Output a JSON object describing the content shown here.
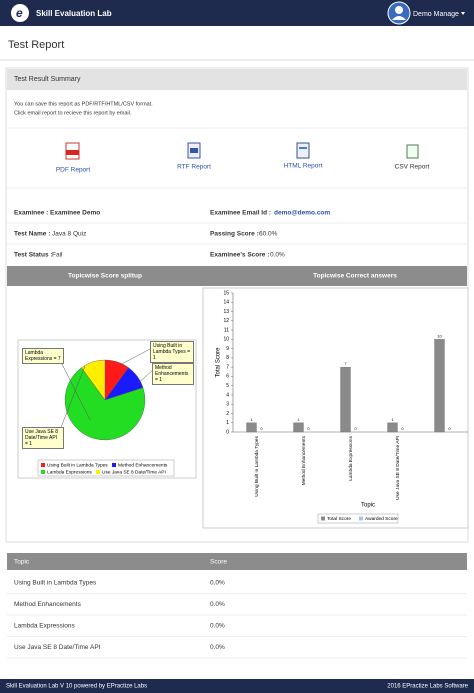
{
  "header": {
    "app_name": "Skill Evaluation Lab",
    "user": "Demo Manage"
  },
  "page_title": "Test Report",
  "summary": {
    "title": "Test Result Summary",
    "notes": [
      "You can save this report as PDF/RTF/HTML/CSV format.",
      "Click email report to recieve this report by email."
    ],
    "reports": [
      "PDF Report",
      "RTF Report",
      "HTML Report",
      "CSV Report"
    ],
    "info": [
      {
        "label": "Examinee :",
        "value": "Examinee Demo"
      },
      {
        "label": "Examinee Email Id :",
        "value": "demo@demo.com"
      },
      {
        "label": "Test Name :",
        "value": "Java 8 Quiz"
      },
      {
        "label": "Passing Score :",
        "value": "60.0%"
      },
      {
        "label": "Test Status :",
        "value": "Fail"
      },
      {
        "label": "Examinee's Score :",
        "value": "0.0%"
      }
    ]
  },
  "chart_data": [
    {
      "type": "pie",
      "title": "Topicwise Score splitup",
      "categories": [
        "Using Built in Lambda Types",
        "Method Enhancements",
        "Lambda Expressions",
        "Use Java SE 8 Date/Time API"
      ],
      "values": [
        1,
        1,
        7,
        1
      ],
      "value_labels": [
        "Using Built in Lambda Types = 1",
        "Method Enhancements = 1",
        "Lambda Expressions = 7",
        "Use Java SE 8 Date/Time API = 1"
      ],
      "colors": [
        "#ff1a1a",
        "#1a1aff",
        "#22dd22",
        "#ffee00"
      ]
    },
    {
      "type": "bar",
      "title": "Topicwise Correct answers",
      "x_label": "Topic",
      "y_label": "Total Score",
      "categories": [
        "Using Built in Lambda Types",
        "Method Enhancements",
        "Lambda Expressions",
        "Use Java SE 8 Date/Time API",
        null
      ],
      "series": [
        {
          "name": "Total Score",
          "color": "#8a8a8a",
          "values": [
            1,
            1,
            7,
            1,
            10
          ]
        },
        {
          "name": "Awarded Score",
          "color": "#a9c4e8",
          "values": [
            0,
            0,
            0,
            0,
            0
          ]
        }
      ],
      "ylim": [
        0,
        15
      ],
      "yticks": [
        0,
        1,
        2,
        3,
        4,
        5,
        6,
        7,
        8,
        9,
        10,
        11,
        12,
        13,
        14,
        15
      ],
      "grid": false
    }
  ],
  "table": {
    "columns": [
      "Topic",
      "Score"
    ],
    "rows": [
      [
        "Using Built in Lambda Types",
        "0.0%"
      ],
      [
        "Method Enhancements",
        "0.0%"
      ],
      [
        "Lambda Expressions",
        "0.0%"
      ],
      [
        "Use Java SE 8 Date/Time API",
        "0.0%"
      ]
    ]
  },
  "footer": {
    "left": "Skill Evaluation Lab V 10 powered by EPractize Labs",
    "right": "2016 EPractize Labs Software"
  }
}
